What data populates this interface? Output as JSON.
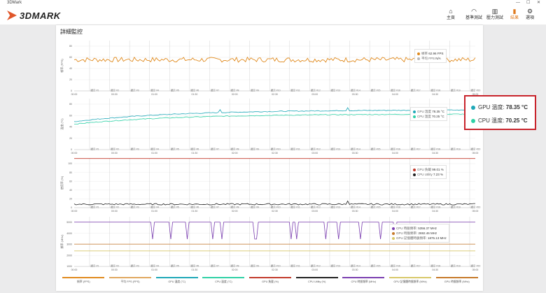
{
  "window": {
    "title": "3DMark",
    "controls": [
      "—",
      "☐",
      "✕"
    ]
  },
  "app": {
    "logo_text": "3DMARK"
  },
  "nav": [
    {
      "label": "主頁",
      "icon": "home-icon",
      "glyph": "⌂",
      "active": false
    },
    {
      "label": "基準測試",
      "icon": "benchmark-icon",
      "glyph": "◠",
      "active": false
    },
    {
      "label": "壓力測試",
      "icon": "stress-test-icon",
      "glyph": "▥",
      "active": false
    },
    {
      "label": "結果",
      "icon": "results-icon",
      "glyph": "▮",
      "active": true
    },
    {
      "label": "選項",
      "icon": "gear-icon",
      "glyph": "⚙",
      "active": false
    }
  ],
  "panel": {
    "title": "詳細監控"
  },
  "colors": {
    "accent": "#e07a1f",
    "callout_border": "#c8232b"
  },
  "callout": {
    "rows": [
      {
        "label": "GPU 溫度:",
        "value": "78.35 °C",
        "color": "#1fa8b8"
      },
      {
        "label": "CPU 溫度:",
        "value": "70.25 °C",
        "color": "#2fd1a6"
      }
    ]
  },
  "chart_data": [
    {
      "type": "line",
      "ylabel": "幀率 (FPS)",
      "ylim": [
        0,
        100
      ],
      "yticks": [
        "80",
        "60",
        "40",
        "20",
        "0"
      ],
      "xticks": [
        "00:00",
        "00:10",
        "00:20",
        "00:30",
        "00:40",
        "00:50",
        "01:00",
        "01:10",
        "01:20",
        "01:30",
        "01:40",
        "01:50",
        "02:00",
        "02:10",
        "02:20",
        "02:30",
        "02:40",
        "02:50",
        "03:00",
        "03:10",
        "03:20",
        "03:30",
        "03:40",
        "03:50",
        "04:00",
        "04:10",
        "04:20",
        "04:30",
        "04:40",
        "04:50",
        "05:00"
      ],
      "markers": [
        "顯示 #1",
        "顯示 #2",
        "顯示 #3",
        "顯示 #4",
        "顯示 #5",
        "顯示 #6",
        "顯示 #7",
        "顯示 #8",
        "顯示 #9",
        "顯示 #10",
        "顯示 #11",
        "顯示 #12",
        "顯示 #13",
        "顯示 #14",
        "顯示 #15",
        "顯示 #16",
        "顯示 #17",
        "顯示 #18",
        "顯示 #19",
        "顯示 #20"
      ],
      "series": [
        {
          "name": "幀率",
          "legend_value": "62.96 FPS",
          "color": "#e08a1e",
          "base": 62,
          "noise": 5
        },
        {
          "name": "平均 FPS",
          "legend_value": "N/A",
          "color": "#b9b9b9",
          "base": null,
          "noise": 0
        }
      ]
    },
    {
      "type": "line",
      "ylabel": "溫度 (°C)",
      "ylim": [
        0,
        100
      ],
      "yticks": [
        "80",
        "60",
        "40",
        "20",
        "0"
      ],
      "series": [
        {
          "name": "GPU 溫度",
          "legend_value": "78.35 °C",
          "color": "#1fa8b8",
          "start": 55,
          "end": 78
        },
        {
          "name": "CPU 溫度",
          "legend_value": "70.25 °C",
          "color": "#2fd1a6",
          "start": 50,
          "end": 70
        }
      ]
    },
    {
      "type": "line",
      "ylabel": "使用率 (%)",
      "ylim": [
        0,
        100
      ],
      "yticks": [
        "100",
        "80",
        "60",
        "40",
        "20",
        "0"
      ],
      "series": [
        {
          "name": "GPU 負載",
          "legend_value": "99.01 %",
          "color": "#c23a2c",
          "base": 99
        },
        {
          "name": "CPU Utility",
          "legend_value": "7.23 %",
          "color": "#222222",
          "base": 7
        }
      ]
    },
    {
      "type": "line",
      "ylabel": "頻率 (MHz)",
      "ylim": [
        0,
        6000
      ],
      "yticks": [
        "5000",
        "4000",
        "3000",
        "2000",
        "1000"
      ],
      "series": [
        {
          "name": "CPU 時脈頻率",
          "legend_value": "5356.37 MHz",
          "color": "#7b3fb0",
          "base": 5356
        },
        {
          "name": "GPU 時脈頻率",
          "legend_value": "2692.46 MHz",
          "color": "#c6792a",
          "base": 2692
        },
        {
          "name": "GPU 記憶體時脈頻率",
          "legend_value": "1875.13 MHz",
          "color": "#d8c86a",
          "base": 1875
        }
      ]
    }
  ],
  "bottom_legend": [
    {
      "label": "幀率 (FPS)",
      "color": "#e08a1e"
    },
    {
      "label": "平均 FPS (FPS)",
      "color": "#e0a860"
    },
    {
      "label": "GPU 溫度 (°C)",
      "color": "#1fa8b8"
    },
    {
      "label": "CPU 溫度 (°C)",
      "color": "#2fd1a6"
    },
    {
      "label": "GPU 負載 (%)",
      "color": "#c23a2c"
    },
    {
      "label": "CPU Utility (%)",
      "color": "#222222"
    },
    {
      "label": "CPU 時脈頻率 (MHz)",
      "color": "#7b3fb0"
    },
    {
      "label": "GPU 記憶體時脈頻率 (MHz)",
      "color": "#d8c86a"
    },
    {
      "label": "GPU 時脈頻率 (MHz)",
      "color": "#c6792a"
    }
  ]
}
